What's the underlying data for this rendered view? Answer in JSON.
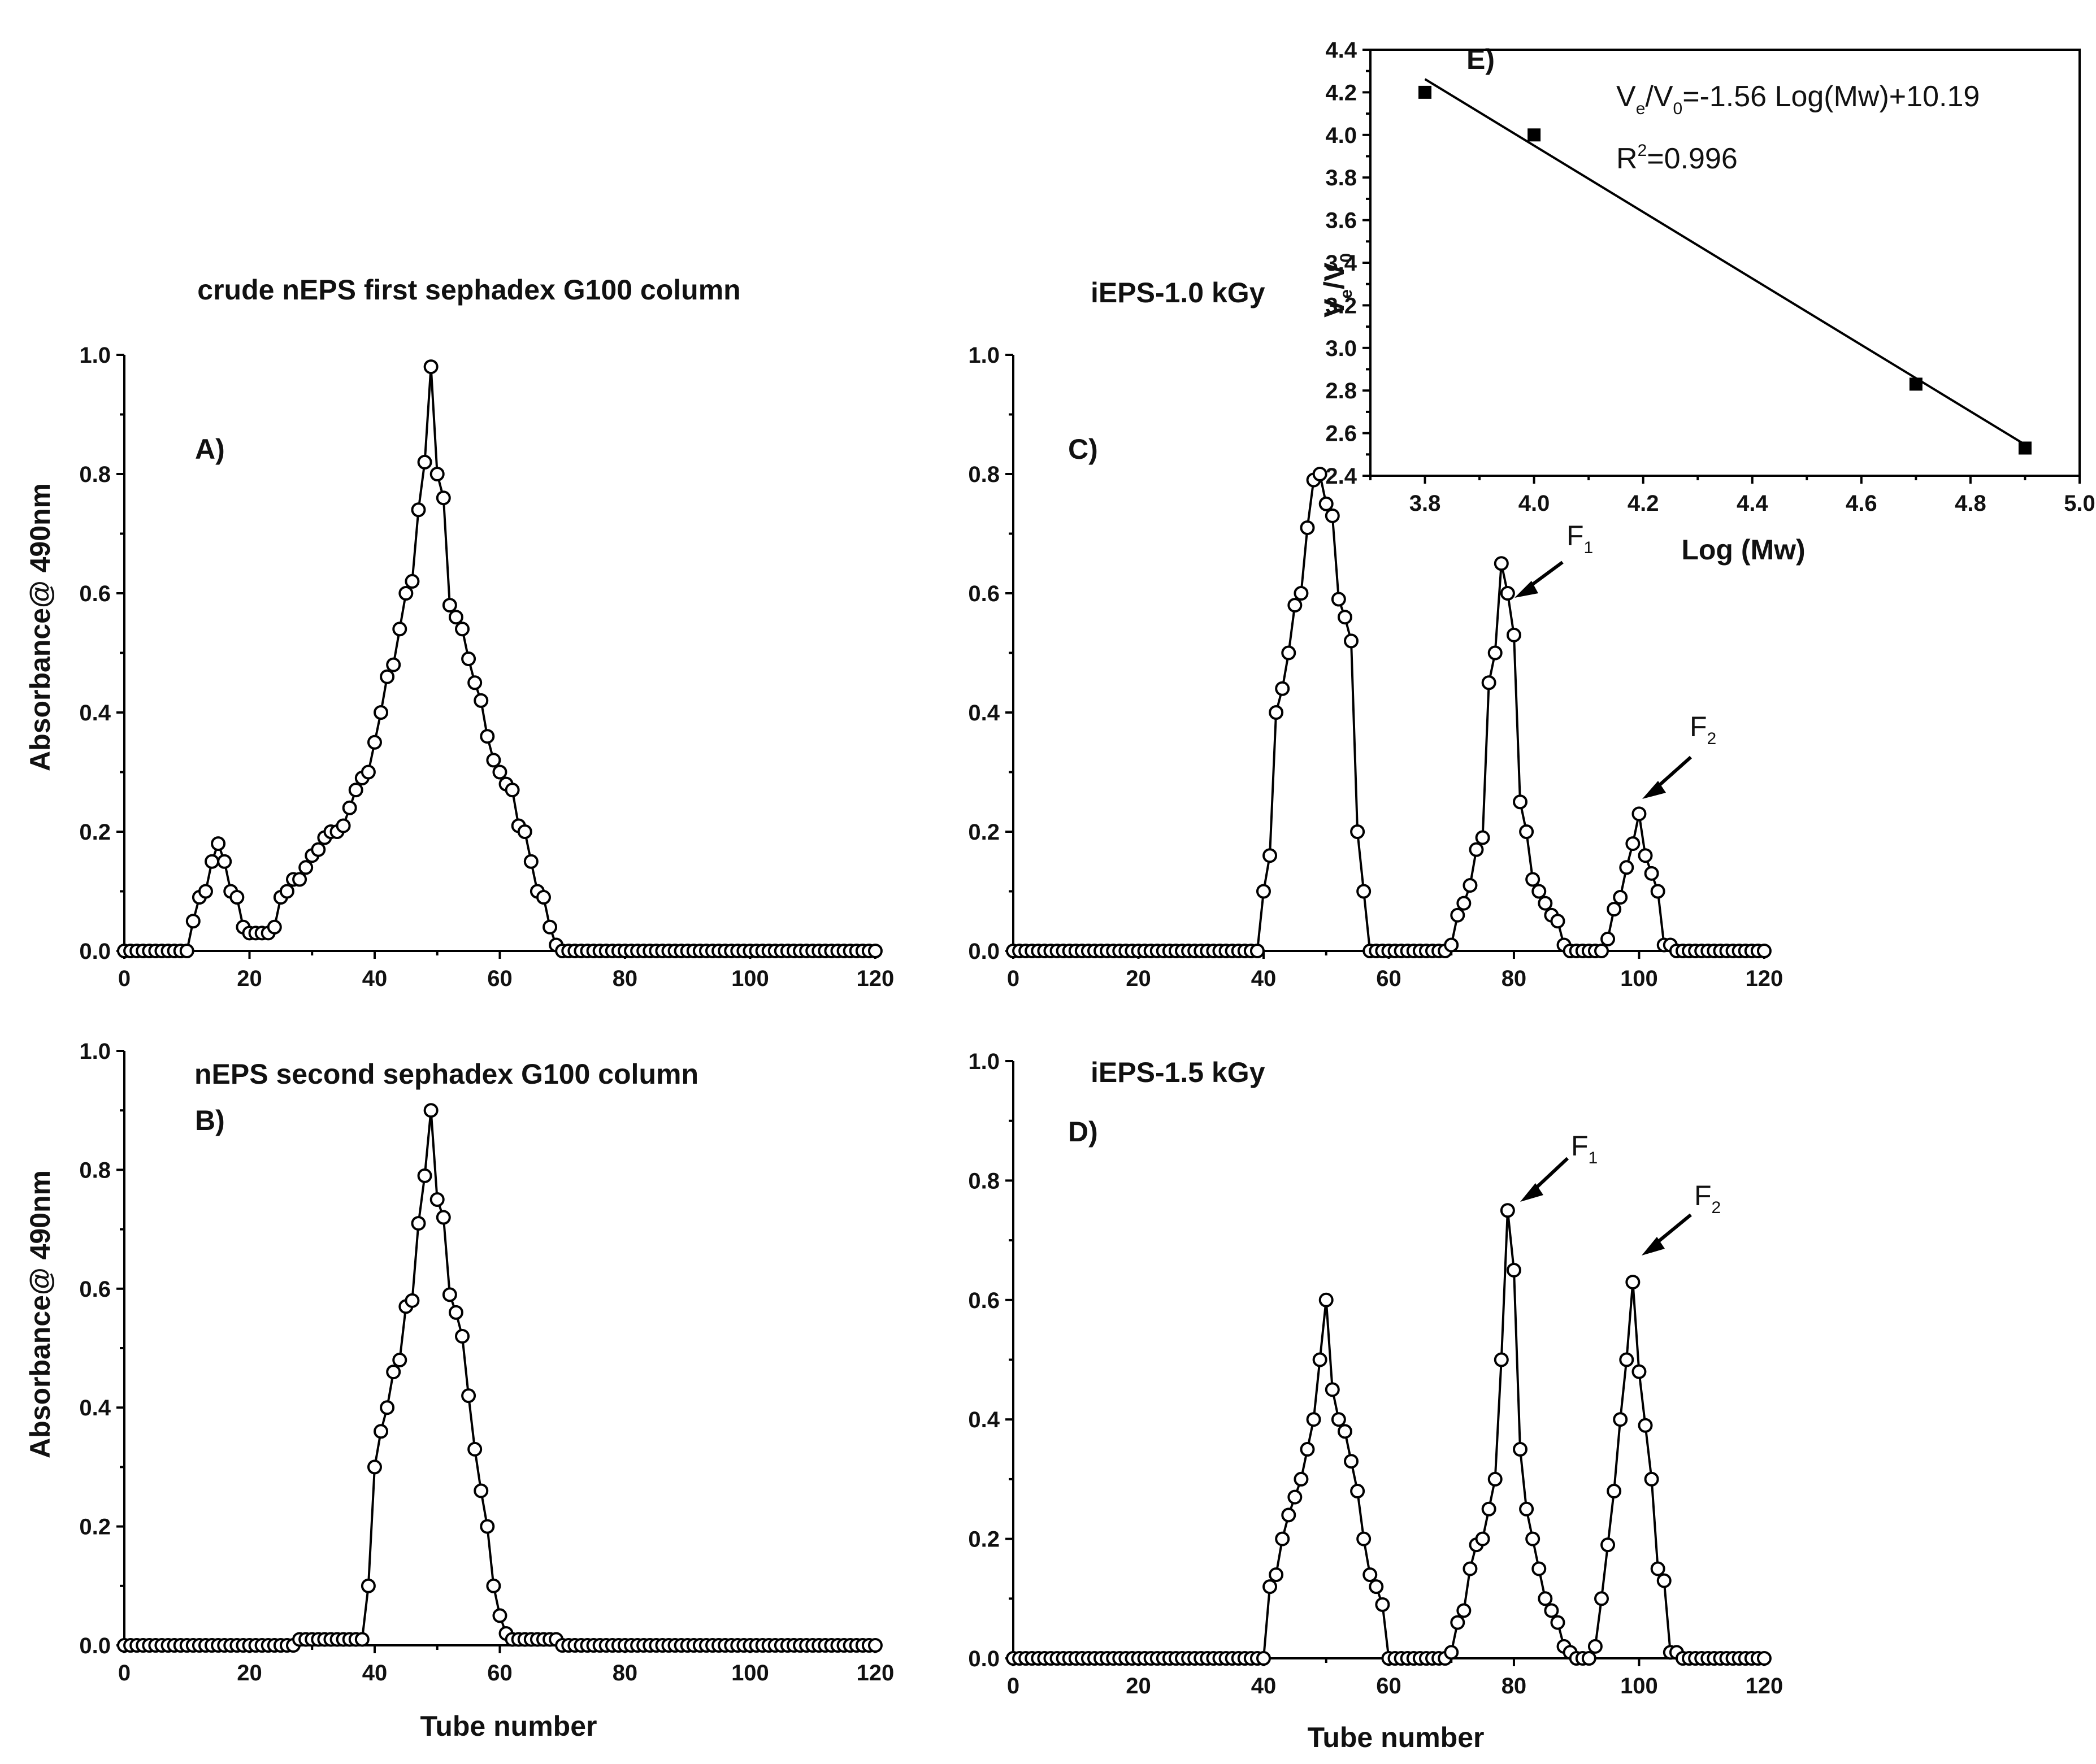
{
  "figure": {
    "panels": [
      {
        "id": "A",
        "letter": "A)",
        "title": "crude nEPS first sephadex G100 column",
        "ylabel": "Absorbance@ 490nm",
        "xlabel": ""
      },
      {
        "id": "B",
        "letter": "B)",
        "title": "nEPS second sephadex G100 column",
        "ylabel": "Absorbance@ 490nm",
        "xlabel": "Tube number"
      },
      {
        "id": "C",
        "letter": "C)",
        "title": "iEPS-1.0 kGy",
        "ylabel": "",
        "xlabel": ""
      },
      {
        "id": "D",
        "letter": "D)",
        "title": "iEPS-1.5 kGy",
        "ylabel": "",
        "xlabel": "Tube number"
      },
      {
        "id": "E",
        "letter": "E)",
        "title": "",
        "ylabel": "Ve/V0",
        "xlabel": "Log (Mw)"
      }
    ],
    "fraction_labels": {
      "f1": "F",
      "f1_sub": "1",
      "f2": "F",
      "f2_sub": "2"
    },
    "calibration": {
      "eq_lhs": "V",
      "eq_lhs_sub": "e",
      "eq_mid": "/V",
      "eq_mid_sub": "0",
      "eq_rhs": "=-1.56 Log(Mw)+10.19",
      "r2_label": "R",
      "r2_sup": "2",
      "r2_value": "=0.996"
    }
  },
  "chart_data": [
    {
      "panel": "A",
      "type": "line",
      "title": "crude nEPS first sephadex G100 column",
      "xlabel": "",
      "ylabel": "Absorbance@ 490nm",
      "xlim": [
        0,
        121
      ],
      "ylim": [
        0,
        1.0
      ],
      "xticks": [
        0,
        20,
        40,
        60,
        80,
        100,
        120
      ],
      "yticks": [
        0.0,
        0.2,
        0.4,
        0.6,
        0.8,
        1.0
      ],
      "x": [
        0,
        1,
        2,
        3,
        4,
        5,
        6,
        7,
        8,
        9,
        10,
        11,
        12,
        13,
        14,
        15,
        16,
        17,
        18,
        19,
        20,
        21,
        22,
        23,
        24,
        25,
        26,
        27,
        28,
        29,
        30,
        31,
        32,
        33,
        34,
        35,
        36,
        37,
        38,
        39,
        40,
        41,
        42,
        43,
        44,
        45,
        46,
        47,
        48,
        49,
        50,
        51,
        52,
        53,
        54,
        55,
        56,
        57,
        58,
        59,
        60,
        61,
        62,
        63,
        64,
        65,
        66,
        67,
        68,
        69,
        70,
        71,
        72,
        73,
        74,
        75,
        76,
        77,
        78,
        79,
        80,
        81,
        82,
        83,
        84,
        85,
        86,
        87,
        88,
        89,
        90,
        91,
        92,
        93,
        94,
        95,
        96,
        97,
        98,
        99,
        100,
        101,
        102,
        103,
        104,
        105,
        106,
        107,
        108,
        109,
        110,
        111,
        112,
        113,
        114,
        115,
        116,
        117,
        118,
        119,
        120
      ],
      "y": [
        0,
        0,
        0,
        0,
        0,
        0,
        0,
        0,
        0,
        0,
        0,
        0.05,
        0.09,
        0.1,
        0.15,
        0.18,
        0.15,
        0.1,
        0.09,
        0.04,
        0.03,
        0.03,
        0.03,
        0.03,
        0.04,
        0.09,
        0.1,
        0.12,
        0.12,
        0.14,
        0.16,
        0.17,
        0.19,
        0.2,
        0.2,
        0.21,
        0.24,
        0.27,
        0.29,
        0.3,
        0.35,
        0.4,
        0.46,
        0.48,
        0.54,
        0.6,
        0.62,
        0.74,
        0.82,
        0.98,
        0.8,
        0.76,
        0.58,
        0.56,
        0.54,
        0.49,
        0.45,
        0.42,
        0.36,
        0.32,
        0.3,
        0.28,
        0.27,
        0.21,
        0.2,
        0.15,
        0.1,
        0.09,
        0.04,
        0.01,
        0,
        0,
        0,
        0,
        0,
        0,
        0,
        0,
        0,
        0,
        0,
        0,
        0,
        0,
        0,
        0,
        0,
        0,
        0,
        0,
        0,
        0,
        0,
        0,
        0,
        0,
        0,
        0,
        0,
        0,
        0,
        0,
        0,
        0,
        0,
        0,
        0,
        0,
        0,
        0,
        0,
        0,
        0,
        0,
        0,
        0,
        0,
        0,
        0,
        0,
        0
      ]
    },
    {
      "panel": "B",
      "type": "line",
      "title": "nEPS second sephadex G100 column",
      "xlabel": "Tube number",
      "ylabel": "Absorbance@ 490nm",
      "xlim": [
        0,
        121
      ],
      "ylim": [
        0,
        1.0
      ],
      "xticks": [
        0,
        20,
        40,
        60,
        80,
        100,
        120
      ],
      "yticks": [
        0.0,
        0.2,
        0.4,
        0.6,
        0.8,
        1.0
      ],
      "x": [
        0,
        1,
        2,
        3,
        4,
        5,
        6,
        7,
        8,
        9,
        10,
        11,
        12,
        13,
        14,
        15,
        16,
        17,
        18,
        19,
        20,
        21,
        22,
        23,
        24,
        25,
        26,
        27,
        28,
        29,
        30,
        31,
        32,
        33,
        34,
        35,
        36,
        37,
        38,
        39,
        40,
        41,
        42,
        43,
        44,
        45,
        46,
        47,
        48,
        49,
        50,
        51,
        52,
        53,
        54,
        55,
        56,
        57,
        58,
        59,
        60,
        61,
        62,
        63,
        64,
        65,
        66,
        67,
        68,
        69,
        70,
        71,
        72,
        73,
        74,
        75,
        76,
        77,
        78,
        79,
        80,
        81,
        82,
        83,
        84,
        85,
        86,
        87,
        88,
        89,
        90,
        91,
        92,
        93,
        94,
        95,
        96,
        97,
        98,
        99,
        100,
        101,
        102,
        103,
        104,
        105,
        106,
        107,
        108,
        109,
        110,
        111,
        112,
        113,
        114,
        115,
        116,
        117,
        118,
        119,
        120
      ],
      "y": [
        0,
        0,
        0,
        0,
        0,
        0,
        0,
        0,
        0,
        0,
        0,
        0,
        0,
        0,
        0,
        0,
        0,
        0,
        0,
        0,
        0,
        0,
        0,
        0,
        0,
        0,
        0,
        0,
        0.01,
        0.01,
        0.01,
        0.01,
        0.01,
        0.01,
        0.01,
        0.01,
        0.01,
        0.01,
        0.01,
        0.1,
        0.3,
        0.36,
        0.4,
        0.46,
        0.48,
        0.57,
        0.58,
        0.71,
        0.79,
        0.9,
        0.75,
        0.72,
        0.59,
        0.56,
        0.52,
        0.42,
        0.33,
        0.26,
        0.2,
        0.1,
        0.05,
        0.02,
        0.01,
        0.01,
        0.01,
        0.01,
        0.01,
        0.01,
        0.01,
        0.01,
        0,
        0,
        0,
        0,
        0,
        0,
        0,
        0,
        0,
        0,
        0,
        0,
        0,
        0,
        0,
        0,
        0,
        0,
        0,
        0,
        0,
        0,
        0,
        0,
        0,
        0,
        0,
        0,
        0,
        0,
        0,
        0,
        0,
        0,
        0,
        0,
        0,
        0,
        0,
        0,
        0,
        0,
        0,
        0,
        0,
        0,
        0,
        0,
        0,
        0,
        0
      ]
    },
    {
      "panel": "C",
      "type": "line",
      "title": "iEPS-1.0 kGy",
      "xlabel": "",
      "ylabel": "",
      "xlim": [
        0,
        121
      ],
      "ylim": [
        0,
        1.0
      ],
      "xticks": [
        0,
        20,
        40,
        60,
        80,
        100,
        120
      ],
      "yticks": [
        0.0,
        0.2,
        0.4,
        0.6,
        0.8,
        1.0
      ],
      "x": [
        0,
        1,
        2,
        3,
        4,
        5,
        6,
        7,
        8,
        9,
        10,
        11,
        12,
        13,
        14,
        15,
        16,
        17,
        18,
        19,
        20,
        21,
        22,
        23,
        24,
        25,
        26,
        27,
        28,
        29,
        30,
        31,
        32,
        33,
        34,
        35,
        36,
        37,
        38,
        39,
        40,
        41,
        42,
        43,
        44,
        45,
        46,
        47,
        48,
        49,
        50,
        51,
        52,
        53,
        54,
        55,
        56,
        57,
        58,
        59,
        60,
        61,
        62,
        63,
        64,
        65,
        66,
        67,
        68,
        69,
        70,
        71,
        72,
        73,
        74,
        75,
        76,
        77,
        78,
        79,
        80,
        81,
        82,
        83,
        84,
        85,
        86,
        87,
        88,
        89,
        90,
        91,
        92,
        93,
        94,
        95,
        96,
        97,
        98,
        99,
        100,
        101,
        102,
        103,
        104,
        105,
        106,
        107,
        108,
        109,
        110,
        111,
        112,
        113,
        114,
        115,
        116,
        117,
        118,
        119,
        120
      ],
      "y": [
        0,
        0,
        0,
        0,
        0,
        0,
        0,
        0,
        0,
        0,
        0,
        0,
        0,
        0,
        0,
        0,
        0,
        0,
        0,
        0,
        0,
        0,
        0,
        0,
        0,
        0,
        0,
        0,
        0,
        0,
        0,
        0,
        0,
        0,
        0,
        0,
        0,
        0,
        0,
        0,
        0.1,
        0.16,
        0.4,
        0.44,
        0.5,
        0.58,
        0.6,
        0.71,
        0.79,
        0.8,
        0.75,
        0.73,
        0.59,
        0.56,
        0.52,
        0.2,
        0.1,
        0,
        0,
        0,
        0,
        0,
        0,
        0,
        0,
        0,
        0,
        0,
        0,
        0,
        0.01,
        0.06,
        0.08,
        0.11,
        0.17,
        0.19,
        0.45,
        0.5,
        0.65,
        0.6,
        0.53,
        0.25,
        0.2,
        0.12,
        0.1,
        0.08,
        0.06,
        0.05,
        0.01,
        0,
        0,
        0,
        0,
        0,
        0,
        0.02,
        0.07,
        0.09,
        0.14,
        0.18,
        0.23,
        0.16,
        0.13,
        0.1,
        0.01,
        0.01,
        0,
        0,
        0,
        0,
        0,
        0,
        0,
        0,
        0,
        0,
        0,
        0,
        0,
        0,
        0
      ]
    },
    {
      "panel": "D",
      "type": "line",
      "title": "iEPS-1.5 kGy",
      "xlabel": "Tube number",
      "ylabel": "",
      "xlim": [
        0,
        121
      ],
      "ylim": [
        0,
        1.0
      ],
      "xticks": [
        0,
        20,
        40,
        60,
        80,
        100,
        120
      ],
      "yticks": [
        0.0,
        0.2,
        0.4,
        0.6,
        0.8,
        1.0
      ],
      "x": [
        0,
        1,
        2,
        3,
        4,
        5,
        6,
        7,
        8,
        9,
        10,
        11,
        12,
        13,
        14,
        15,
        16,
        17,
        18,
        19,
        20,
        21,
        22,
        23,
        24,
        25,
        26,
        27,
        28,
        29,
        30,
        31,
        32,
        33,
        34,
        35,
        36,
        37,
        38,
        39,
        40,
        41,
        42,
        43,
        44,
        45,
        46,
        47,
        48,
        49,
        50,
        51,
        52,
        53,
        54,
        55,
        56,
        57,
        58,
        59,
        60,
        61,
        62,
        63,
        64,
        65,
        66,
        67,
        68,
        69,
        70,
        71,
        72,
        73,
        74,
        75,
        76,
        77,
        78,
        79,
        80,
        81,
        82,
        83,
        84,
        85,
        86,
        87,
        88,
        89,
        90,
        91,
        92,
        93,
        94,
        95,
        96,
        97,
        98,
        99,
        100,
        101,
        102,
        103,
        104,
        105,
        106,
        107,
        108,
        109,
        110,
        111,
        112,
        113,
        114,
        115,
        116,
        117,
        118,
        119,
        120
      ],
      "y": [
        0,
        0,
        0,
        0,
        0,
        0,
        0,
        0,
        0,
        0,
        0,
        0,
        0,
        0,
        0,
        0,
        0,
        0,
        0,
        0,
        0,
        0,
        0,
        0,
        0,
        0,
        0,
        0,
        0,
        0,
        0,
        0,
        0,
        0,
        0,
        0,
        0,
        0,
        0,
        0,
        0,
        0.12,
        0.14,
        0.2,
        0.24,
        0.27,
        0.3,
        0.35,
        0.4,
        0.5,
        0.6,
        0.45,
        0.4,
        0.38,
        0.33,
        0.28,
        0.2,
        0.14,
        0.12,
        0.09,
        0,
        0,
        0,
        0,
        0,
        0,
        0,
        0,
        0,
        0,
        0.01,
        0.06,
        0.08,
        0.15,
        0.19,
        0.2,
        0.25,
        0.3,
        0.5,
        0.75,
        0.65,
        0.35,
        0.25,
        0.2,
        0.15,
        0.1,
        0.08,
        0.06,
        0.02,
        0.01,
        0,
        0,
        0,
        0.02,
        0.1,
        0.19,
        0.28,
        0.4,
        0.5,
        0.63,
        0.48,
        0.39,
        0.3,
        0.15,
        0.13,
        0.01,
        0.01,
        0,
        0,
        0,
        0,
        0,
        0,
        0,
        0,
        0,
        0,
        0,
        0,
        0,
        0
      ]
    },
    {
      "panel": "E",
      "type": "scatter",
      "title": "",
      "xlabel": "Log (Mw)",
      "ylabel": "Ve/V0",
      "xlim": [
        3.7,
        5.0
      ],
      "ylim": [
        2.4,
        4.4
      ],
      "xticks": [
        3.8,
        4.0,
        4.2,
        4.4,
        4.6,
        4.8,
        5.0
      ],
      "yticks": [
        2.4,
        2.6,
        2.8,
        3.0,
        3.2,
        3.4,
        3.6,
        3.8,
        4.0,
        4.2,
        4.4
      ],
      "x": [
        3.8,
        4.0,
        4.7,
        4.9
      ],
      "y": [
        4.2,
        4.0,
        2.83,
        2.53
      ],
      "fit": {
        "slope": -1.56,
        "intercept": 10.19,
        "x_range": [
          3.8,
          4.9
        ]
      }
    }
  ]
}
